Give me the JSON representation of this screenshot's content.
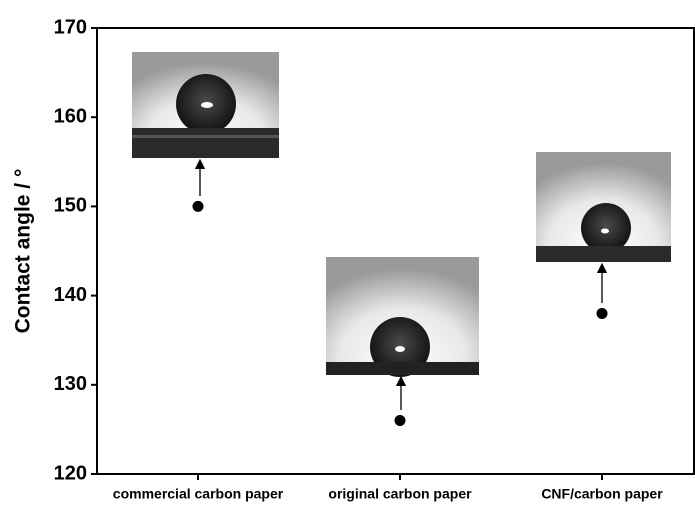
{
  "chart_data": {
    "type": "scatter",
    "y_label": "Contact angle / °",
    "categories": [
      "commercial carbon paper",
      "original carbon paper",
      "CNF/carbon paper"
    ],
    "values": [
      150,
      126,
      138
    ],
    "color": "#000000",
    "ylim": [
      120,
      170
    ],
    "yticks": [
      120,
      130,
      140,
      150,
      160,
      170
    ]
  }
}
